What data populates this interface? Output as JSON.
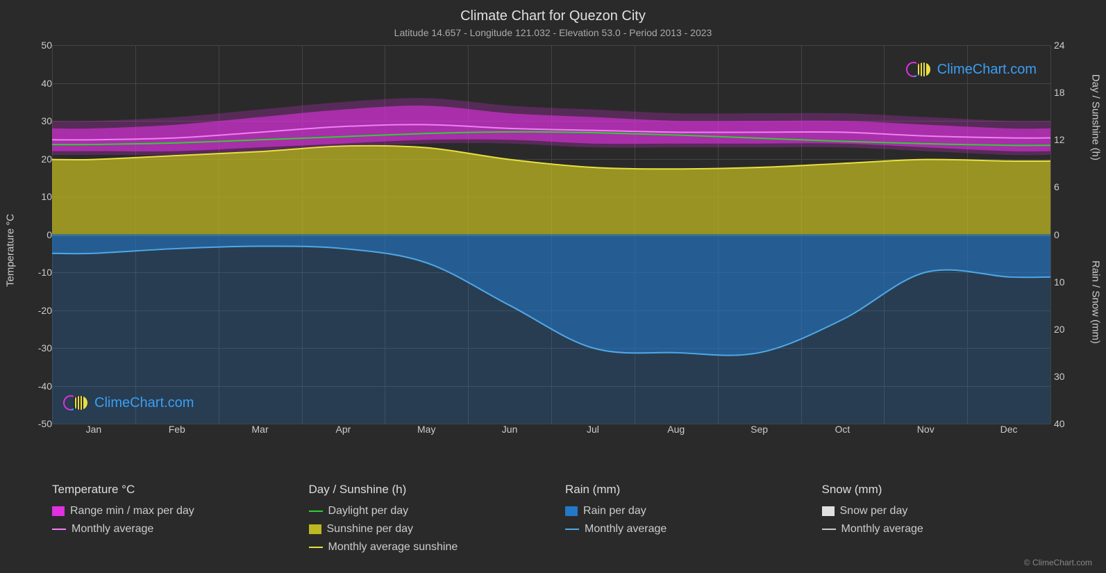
{
  "title": "Climate Chart for Quezon City",
  "subtitle": "Latitude 14.657 - Longitude 121.032 - Elevation 53.0 - Period 2013 - 2023",
  "watermark_text": "ClimeChart.com",
  "copyright": "© ClimeChart.com",
  "colors": {
    "background": "#2a2a2a",
    "grid": "#444444",
    "text": "#cccccc",
    "temp_range": "#e030e0",
    "temp_avg": "#f080f5",
    "daylight": "#30d030",
    "sunshine_fill": "#bdb721",
    "sunshine_line": "#e8e040",
    "rain_fill": "#2378c8",
    "rain_line": "#50a8e8",
    "snow_fill": "#e0e0e0",
    "snow_line": "#cccccc",
    "brand": "#3a9ff5"
  },
  "left_axis": {
    "label": "Temperature °C",
    "min": -50,
    "max": 50,
    "step": 10,
    "ticks": [
      -50,
      -40,
      -30,
      -20,
      -10,
      0,
      10,
      20,
      30,
      40,
      50
    ]
  },
  "right_axis_top": {
    "label": "Day / Sunshine (h)",
    "min": 0,
    "max": 24,
    "step": 6,
    "ticks": [
      0,
      6,
      12,
      18,
      24
    ]
  },
  "right_axis_bottom": {
    "label": "Rain / Snow (mm)",
    "min": 0,
    "max": 40,
    "step": 10,
    "ticks": [
      0,
      10,
      20,
      30,
      40
    ]
  },
  "months": [
    "Jan",
    "Feb",
    "Mar",
    "Apr",
    "May",
    "Jun",
    "Jul",
    "Aug",
    "Sep",
    "Oct",
    "Nov",
    "Dec"
  ],
  "data": {
    "temp_max": [
      28,
      29,
      31,
      33,
      34,
      32,
      31,
      30,
      30,
      30,
      29,
      28
    ],
    "temp_min": [
      22,
      22,
      23,
      24,
      25,
      25,
      24,
      24,
      24,
      24,
      23,
      22
    ],
    "temp_avg": [
      25,
      25.5,
      27,
      28.5,
      29,
      28,
      27.5,
      27,
      27,
      27,
      26,
      25.5
    ],
    "daylight_h": [
      11.4,
      11.6,
      12.0,
      12.4,
      12.8,
      13.0,
      12.9,
      12.6,
      12.2,
      11.8,
      11.5,
      11.3
    ],
    "sunshine_h": [
      9.5,
      10.0,
      10.5,
      11.2,
      11.0,
      9.5,
      8.5,
      8.3,
      8.5,
      9.0,
      9.5,
      9.3
    ],
    "rain_mm": [
      4,
      3,
      2.5,
      3,
      6,
      15,
      24,
      25,
      25,
      18,
      8,
      9
    ]
  },
  "legend": {
    "col1": {
      "header": "Temperature °C",
      "items": [
        {
          "type": "swatch",
          "color": "#e030e0",
          "label": "Range min / max per day"
        },
        {
          "type": "line",
          "color": "#f080f5",
          "label": "Monthly average"
        }
      ]
    },
    "col2": {
      "header": "Day / Sunshine (h)",
      "items": [
        {
          "type": "line",
          "color": "#30d030",
          "label": "Daylight per day"
        },
        {
          "type": "swatch",
          "color": "#bdb721",
          "label": "Sunshine per day"
        },
        {
          "type": "line",
          "color": "#e8e040",
          "label": "Monthly average sunshine"
        }
      ]
    },
    "col3": {
      "header": "Rain (mm)",
      "items": [
        {
          "type": "swatch",
          "color": "#2378c8",
          "label": "Rain per day"
        },
        {
          "type": "line",
          "color": "#50a8e8",
          "label": "Monthly average"
        }
      ]
    },
    "col4": {
      "header": "Snow (mm)",
      "items": [
        {
          "type": "swatch",
          "color": "#e0e0e0",
          "label": "Snow per day"
        },
        {
          "type": "line",
          "color": "#cccccc",
          "label": "Monthly average"
        }
      ]
    }
  }
}
